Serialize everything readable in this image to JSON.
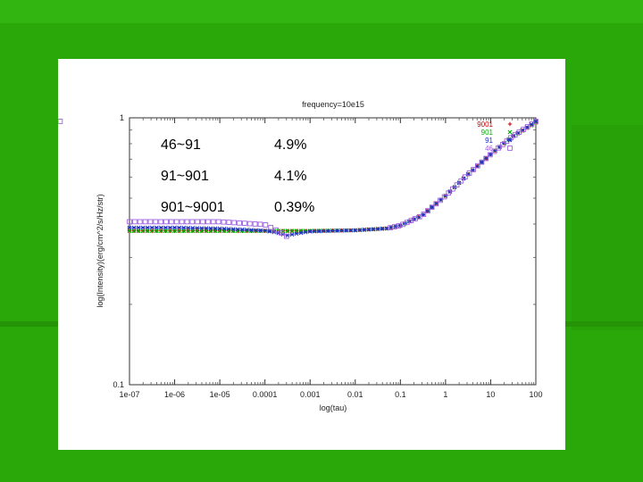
{
  "slide": {
    "background_color": "#2aa80a",
    "table": {
      "rows": [
        {
          "range": "46~91",
          "value": "4.9%"
        },
        {
          "range": "91~901",
          "value": "4.1%"
        },
        {
          "range": "901~9001",
          "value": "0.39%"
        }
      ]
    }
  },
  "chart_data": {
    "type": "scatter",
    "title": "frequency=10e15",
    "xlabel": "log(tau)",
    "ylabel": "log(Intensity)(erg/cm^2/s/Hz/str)",
    "xscale": "log",
    "yscale": "log",
    "xlim": [
      1e-07,
      100
    ],
    "ylim": [
      0.1,
      1
    ],
    "x_ticks": [
      "1e-07",
      "1e-06",
      "1e-05",
      "0.0001",
      "0.001",
      "0.01",
      "0.1",
      "1",
      "10",
      "100"
    ],
    "y_ticks": [
      "0.1",
      "1"
    ],
    "grid": false,
    "legend_position": "top-right",
    "series": [
      {
        "name": "9001",
        "marker": "+",
        "color": "#c00000",
        "points": [
          [
            1e-07,
            0.377
          ],
          [
            1e-06,
            0.377
          ],
          [
            1e-05,
            0.377
          ],
          [
            0.0001,
            0.377
          ],
          [
            0.0003,
            0.377
          ],
          [
            0.001,
            0.377
          ],
          [
            0.01,
            0.379
          ],
          [
            0.05,
            0.385
          ],
          [
            0.1,
            0.395
          ],
          [
            0.3,
            0.43
          ],
          [
            1,
            0.51
          ],
          [
            3,
            0.61
          ],
          [
            10,
            0.73
          ],
          [
            30,
            0.85
          ],
          [
            100,
            0.96
          ]
        ]
      },
      {
        "name": "901",
        "marker": "x",
        "color": "#00b000",
        "points": [
          [
            1e-07,
            0.377
          ],
          [
            1e-06,
            0.377
          ],
          [
            1e-05,
            0.377
          ],
          [
            0.0001,
            0.377
          ],
          [
            0.0003,
            0.377
          ],
          [
            0.001,
            0.377
          ],
          [
            0.01,
            0.379
          ],
          [
            0.05,
            0.385
          ],
          [
            0.1,
            0.395
          ],
          [
            0.3,
            0.43
          ],
          [
            1,
            0.51
          ],
          [
            3,
            0.61
          ],
          [
            10,
            0.73
          ],
          [
            30,
            0.85
          ],
          [
            100,
            0.96
          ]
        ]
      },
      {
        "name": "91",
        "marker": "*",
        "color": "#2030c0",
        "points": [
          [
            1e-07,
            0.388
          ],
          [
            1e-06,
            0.388
          ],
          [
            1e-05,
            0.385
          ],
          [
            0.0001,
            0.378
          ],
          [
            0.0002,
            0.37
          ],
          [
            0.0003,
            0.362
          ],
          [
            0.0005,
            0.368
          ],
          [
            0.001,
            0.375
          ],
          [
            0.01,
            0.379
          ],
          [
            0.05,
            0.385
          ],
          [
            0.1,
            0.395
          ],
          [
            0.3,
            0.43
          ],
          [
            1,
            0.51
          ],
          [
            3,
            0.61
          ],
          [
            10,
            0.73
          ],
          [
            30,
            0.85
          ],
          [
            100,
            0.97
          ]
        ]
      },
      {
        "name": "46",
        "marker": "square",
        "color": "#a060e0",
        "points": [
          [
            1e-07,
            0.408
          ],
          [
            1e-06,
            0.408
          ],
          [
            1e-05,
            0.408
          ],
          [
            0.0001,
            0.398
          ],
          [
            0.0002,
            0.376
          ],
          [
            0.0003,
            0.36
          ],
          [
            0.0005,
            0.362
          ],
          [
            0.001,
            0.374
          ],
          [
            0.01,
            0.379
          ],
          [
            0.05,
            0.385
          ],
          [
            0.1,
            0.395
          ],
          [
            0.3,
            0.43
          ],
          [
            1,
            0.51
          ],
          [
            3,
            0.61
          ],
          [
            10,
            0.73
          ],
          [
            30,
            0.85
          ],
          [
            100,
            0.97
          ]
        ]
      }
    ]
  }
}
